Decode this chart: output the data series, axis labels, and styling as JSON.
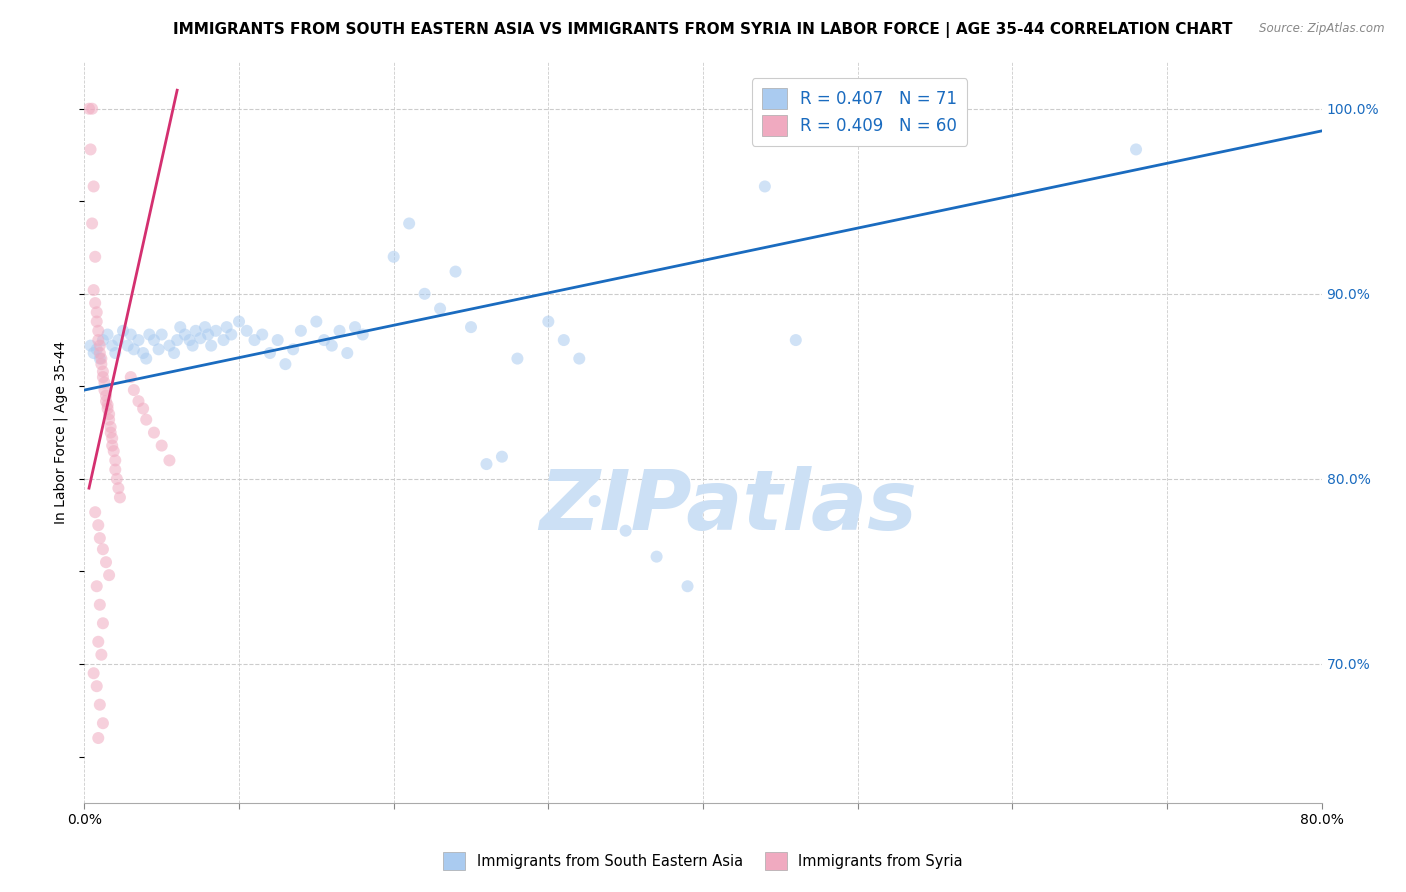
{
  "title": "IMMIGRANTS FROM SOUTH EASTERN ASIA VS IMMIGRANTS FROM SYRIA IN LABOR FORCE | AGE 35-44 CORRELATION CHART",
  "source": "Source: ZipAtlas.com",
  "ylabel": "In Labor Force | Age 35-44",
  "legend_label_blue": "Immigrants from South Eastern Asia",
  "legend_label_pink": "Immigrants from Syria",
  "R_blue": 0.407,
  "N_blue": 71,
  "R_pink": 0.409,
  "N_pink": 60,
  "color_blue": "#aacbf0",
  "color_pink": "#f0aac0",
  "line_color_blue": "#1a6bbf",
  "line_color_pink": "#d43070",
  "xlim": [
    0.0,
    0.8
  ],
  "ylim": [
    0.625,
    1.025
  ],
  "xticks": [
    0.0,
    0.1,
    0.2,
    0.3,
    0.4,
    0.5,
    0.6,
    0.7,
    0.8
  ],
  "xtick_labels_show": [
    "0.0%",
    "",
    "",
    "",
    "",
    "",
    "",
    "",
    "80.0%"
  ],
  "yticks_right": [
    0.7,
    0.8,
    0.9,
    1.0
  ],
  "watermark": "ZIPatlas",
  "blue_scatter": [
    [
      0.004,
      0.872
    ],
    [
      0.006,
      0.868
    ],
    [
      0.008,
      0.87
    ],
    [
      0.01,
      0.865
    ],
    [
      0.012,
      0.875
    ],
    [
      0.015,
      0.878
    ],
    [
      0.018,
      0.872
    ],
    [
      0.02,
      0.868
    ],
    [
      0.022,
      0.875
    ],
    [
      0.025,
      0.88
    ],
    [
      0.028,
      0.872
    ],
    [
      0.03,
      0.878
    ],
    [
      0.032,
      0.87
    ],
    [
      0.035,
      0.875
    ],
    [
      0.038,
      0.868
    ],
    [
      0.04,
      0.865
    ],
    [
      0.042,
      0.878
    ],
    [
      0.045,
      0.875
    ],
    [
      0.048,
      0.87
    ],
    [
      0.05,
      0.878
    ],
    [
      0.055,
      0.872
    ],
    [
      0.058,
      0.868
    ],
    [
      0.06,
      0.875
    ],
    [
      0.062,
      0.882
    ],
    [
      0.065,
      0.878
    ],
    [
      0.068,
      0.875
    ],
    [
      0.07,
      0.872
    ],
    [
      0.072,
      0.88
    ],
    [
      0.075,
      0.876
    ],
    [
      0.078,
      0.882
    ],
    [
      0.08,
      0.878
    ],
    [
      0.082,
      0.872
    ],
    [
      0.085,
      0.88
    ],
    [
      0.09,
      0.875
    ],
    [
      0.092,
      0.882
    ],
    [
      0.095,
      0.878
    ],
    [
      0.1,
      0.885
    ],
    [
      0.105,
      0.88
    ],
    [
      0.11,
      0.875
    ],
    [
      0.115,
      0.878
    ],
    [
      0.12,
      0.868
    ],
    [
      0.125,
      0.875
    ],
    [
      0.13,
      0.862
    ],
    [
      0.135,
      0.87
    ],
    [
      0.14,
      0.88
    ],
    [
      0.15,
      0.885
    ],
    [
      0.155,
      0.875
    ],
    [
      0.16,
      0.872
    ],
    [
      0.165,
      0.88
    ],
    [
      0.17,
      0.868
    ],
    [
      0.175,
      0.882
    ],
    [
      0.18,
      0.878
    ],
    [
      0.2,
      0.92
    ],
    [
      0.21,
      0.938
    ],
    [
      0.22,
      0.9
    ],
    [
      0.23,
      0.892
    ],
    [
      0.24,
      0.912
    ],
    [
      0.25,
      0.882
    ],
    [
      0.26,
      0.808
    ],
    [
      0.27,
      0.812
    ],
    [
      0.28,
      0.865
    ],
    [
      0.3,
      0.885
    ],
    [
      0.31,
      0.875
    ],
    [
      0.32,
      0.865
    ],
    [
      0.33,
      0.788
    ],
    [
      0.35,
      0.772
    ],
    [
      0.37,
      0.758
    ],
    [
      0.39,
      0.742
    ],
    [
      0.44,
      0.958
    ],
    [
      0.46,
      0.875
    ],
    [
      0.68,
      0.978
    ]
  ],
  "pink_scatter": [
    [
      0.003,
      1.0
    ],
    [
      0.005,
      1.0
    ],
    [
      0.004,
      0.978
    ],
    [
      0.006,
      0.958
    ],
    [
      0.005,
      0.938
    ],
    [
      0.007,
      0.92
    ],
    [
      0.006,
      0.902
    ],
    [
      0.007,
      0.895
    ],
    [
      0.008,
      0.89
    ],
    [
      0.008,
      0.885
    ],
    [
      0.009,
      0.88
    ],
    [
      0.009,
      0.875
    ],
    [
      0.01,
      0.872
    ],
    [
      0.01,
      0.868
    ],
    [
      0.011,
      0.865
    ],
    [
      0.011,
      0.862
    ],
    [
      0.012,
      0.858
    ],
    [
      0.012,
      0.855
    ],
    [
      0.013,
      0.852
    ],
    [
      0.013,
      0.848
    ],
    [
      0.014,
      0.845
    ],
    [
      0.014,
      0.842
    ],
    [
      0.015,
      0.84
    ],
    [
      0.015,
      0.838
    ],
    [
      0.016,
      0.835
    ],
    [
      0.016,
      0.832
    ],
    [
      0.017,
      0.828
    ],
    [
      0.017,
      0.825
    ],
    [
      0.018,
      0.822
    ],
    [
      0.018,
      0.818
    ],
    [
      0.019,
      0.815
    ],
    [
      0.02,
      0.81
    ],
    [
      0.02,
      0.805
    ],
    [
      0.021,
      0.8
    ],
    [
      0.022,
      0.795
    ],
    [
      0.023,
      0.79
    ],
    [
      0.007,
      0.782
    ],
    [
      0.009,
      0.775
    ],
    [
      0.01,
      0.768
    ],
    [
      0.012,
      0.762
    ],
    [
      0.014,
      0.755
    ],
    [
      0.016,
      0.748
    ],
    [
      0.008,
      0.742
    ],
    [
      0.01,
      0.732
    ],
    [
      0.012,
      0.722
    ],
    [
      0.009,
      0.712
    ],
    [
      0.011,
      0.705
    ],
    [
      0.006,
      0.695
    ],
    [
      0.008,
      0.688
    ],
    [
      0.01,
      0.678
    ],
    [
      0.012,
      0.668
    ],
    [
      0.009,
      0.66
    ],
    [
      0.03,
      0.855
    ],
    [
      0.032,
      0.848
    ],
    [
      0.035,
      0.842
    ],
    [
      0.038,
      0.838
    ],
    [
      0.04,
      0.832
    ],
    [
      0.045,
      0.825
    ],
    [
      0.05,
      0.818
    ],
    [
      0.055,
      0.81
    ]
  ],
  "blue_line_x": [
    0.0,
    0.8
  ],
  "blue_line_y": [
    0.848,
    0.988
  ],
  "pink_line_x": [
    0.003,
    0.06
  ],
  "pink_line_y": [
    0.795,
    1.01
  ],
  "background_color": "#ffffff",
  "grid_color": "#cccccc",
  "title_fontsize": 11,
  "axis_label_fontsize": 10,
  "tick_fontsize": 10,
  "marker_size": 75,
  "marker_alpha": 0.55,
  "watermark_color": "#cce0f5",
  "watermark_fontsize": 60
}
